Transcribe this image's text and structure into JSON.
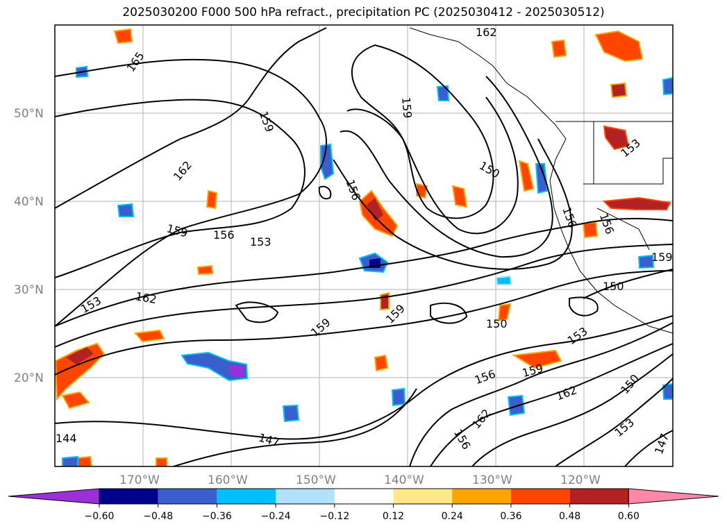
{
  "title": "2025030200 F000 500 hPa refract., precipitation PC (2025030412 - 2025030512)",
  "lat_labels": [
    "50°N",
    "40°N",
    "30°N",
    "20°N"
  ],
  "lon_labels": [
    "170°W",
    "160°W",
    "150°W",
    "140°W",
    "130°W",
    "120°W"
  ],
  "contour_labels": [
    "165",
    "162",
    "159",
    "156",
    "153",
    "162",
    "159",
    "156",
    "153",
    "150",
    "159",
    "162",
    "156",
    "159",
    "153",
    "150",
    "147",
    "144",
    "162",
    "159",
    "156",
    "150",
    "153",
    "147",
    "159",
    "150",
    "156",
    "153",
    "159",
    "162",
    "156"
  ],
  "colorbar": {
    "ticks": [
      "−0.60",
      "−0.48",
      "−0.36",
      "−0.24",
      "−0.12",
      "0.12",
      "0.24",
      "0.36",
      "0.48",
      "0.60"
    ],
    "colors": [
      "#9b30d9",
      "#00008b",
      "#3a5fcd",
      "#00bfff",
      "#b0e2ff",
      "#ffffff",
      "#ffe88a",
      "#ffa500",
      "#ff4500",
      "#b22222",
      "#ff88a8"
    ]
  }
}
